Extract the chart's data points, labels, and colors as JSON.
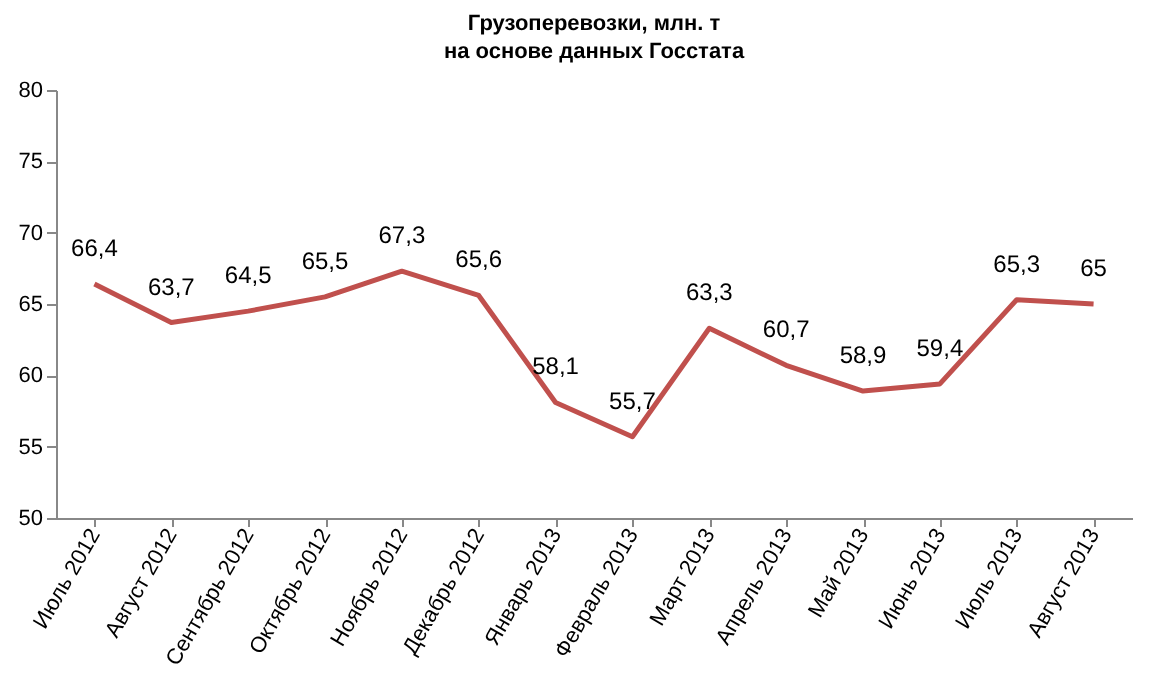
{
  "chart_data": {
    "type": "line",
    "title": "Грузоперевозки, млн. т",
    "subtitle": "на основе данных Госстата",
    "categories": [
      "Июль 2012",
      "Август 2012",
      "Сентябрь 2012",
      "Октябрь 2012",
      "Ноябрь 2012",
      "Декабрь 2012",
      "Январь 2013",
      "Февраль 2013",
      "Март 2013",
      "Апрель 2013",
      "Май 2013",
      "Июнь 2013",
      "Июль 2013",
      "Август 2013"
    ],
    "series": [
      {
        "color": "#c0504d",
        "values": [
          66.4,
          63.7,
          64.5,
          65.5,
          67.3,
          65.6,
          58.1,
          55.7,
          63.3,
          60.7,
          58.9,
          59.4,
          65.3,
          65
        ],
        "value_labels": [
          "66,4",
          "63,7",
          "64,5",
          "65,5",
          "67,3",
          "65,6",
          "58,1",
          "55,7",
          "63,3",
          "60,7",
          "58,9",
          "59,4",
          "65,3",
          "65"
        ]
      }
    ],
    "ylim": [
      50,
      80
    ],
    "yticks": [
      50,
      55,
      60,
      65,
      70,
      75,
      80
    ],
    "grid": false,
    "legend": false,
    "marker": "none",
    "line_style": "solid"
  }
}
